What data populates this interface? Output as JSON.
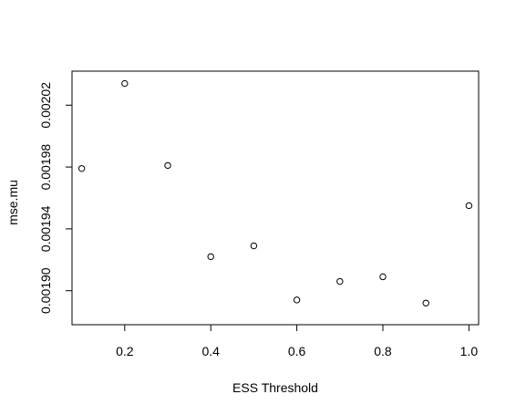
{
  "chart_data": {
    "type": "scatter",
    "title": "",
    "xlabel": "ESS Threshold",
    "ylabel": "mse.mu",
    "xlim": [
      0.0775,
      1.0225
    ],
    "ylim": [
      0.001878,
      0.002042
    ],
    "x_ticks": [
      0.2,
      0.4,
      0.6,
      0.8,
      1.0
    ],
    "x_tick_labels": [
      "0.2",
      "0.4",
      "0.6",
      "0.8",
      "1.0"
    ],
    "y_ticks": [
      0.0019,
      0.00194,
      0.00198,
      0.00202
    ],
    "y_tick_labels": [
      "0.00190",
      "0.00194",
      "0.00198",
      "0.00202"
    ],
    "grid": false,
    "points": [
      {
        "x": 0.1,
        "y": 0.001979
      },
      {
        "x": 0.2,
        "y": 0.002034
      },
      {
        "x": 0.3,
        "y": 0.001981
      },
      {
        "x": 0.4,
        "y": 0.001922
      },
      {
        "x": 0.5,
        "y": 0.001929
      },
      {
        "x": 0.6,
        "y": 0.001894
      },
      {
        "x": 0.7,
        "y": 0.001906
      },
      {
        "x": 0.8,
        "y": 0.001909
      },
      {
        "x": 0.9,
        "y": 0.001892
      },
      {
        "x": 1.0,
        "y": 0.001955
      }
    ]
  }
}
